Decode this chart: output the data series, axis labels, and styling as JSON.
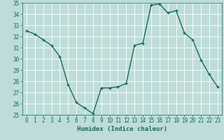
{
  "x": [
    0,
    1,
    2,
    3,
    4,
    5,
    6,
    7,
    8,
    9,
    10,
    11,
    12,
    13,
    14,
    15,
    16,
    17,
    18,
    19,
    20,
    21,
    22,
    23
  ],
  "y": [
    32.5,
    32.2,
    31.7,
    31.2,
    30.2,
    27.7,
    26.1,
    25.6,
    25.1,
    27.4,
    27.4,
    27.5,
    27.8,
    31.2,
    31.4,
    34.8,
    34.9,
    34.1,
    34.3,
    32.3,
    31.7,
    29.9,
    28.6,
    27.5
  ],
  "line_color": "#1a6b5a",
  "marker": "+",
  "marker_size": 3,
  "marker_lw": 1.0,
  "bg_color": "#beddda",
  "grid_color": "#ffffff",
  "xlabel": "Humidex (Indice chaleur)",
  "ylim": [
    25,
    35
  ],
  "xlim": [
    -0.5,
    23.5
  ],
  "yticks": [
    25,
    26,
    27,
    28,
    29,
    30,
    31,
    32,
    33,
    34,
    35
  ],
  "xticks": [
    0,
    1,
    2,
    3,
    4,
    5,
    6,
    7,
    8,
    9,
    10,
    11,
    12,
    13,
    14,
    15,
    16,
    17,
    18,
    19,
    20,
    21,
    22,
    23
  ],
  "tick_color": "#1a6b5a",
  "label_fontsize": 6.5,
  "tick_fontsize": 5.5,
  "linewidth": 1.0
}
